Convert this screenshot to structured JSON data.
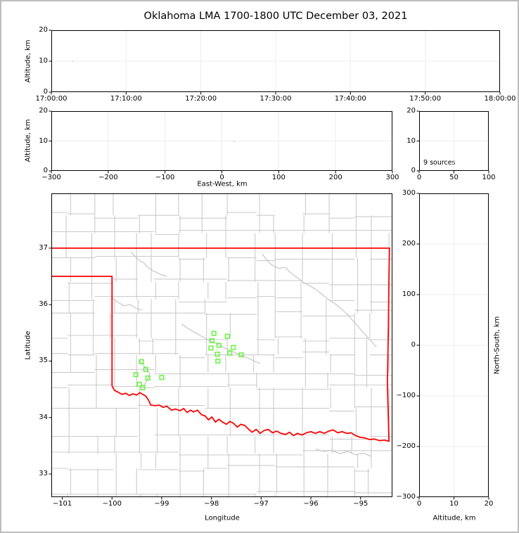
{
  "title": "Oklahoma LMA 1700-1800 UTC December 03, 2021",
  "colors": {
    "background": "#ffffff",
    "frame_border": "#bdbdbd",
    "axis": "#000000",
    "grid": "#ececec",
    "county": "#cbcbcb",
    "river": "#c6c6c6",
    "state_border": "#ff0000",
    "station": "#62f53c",
    "source_point": "#e3e3ea",
    "text": "#000000"
  },
  "chart_data": [
    {
      "id": "time_height",
      "type": "scatter",
      "title": "Oklahoma LMA 1700-1800 UTC December 03, 2021",
      "xlabel": "",
      "ylabel": "Altitude, km",
      "xlim": [
        0,
        3600
      ],
      "ylim": [
        0,
        20
      ],
      "grid": true,
      "xticks": [
        {
          "v": 0,
          "label": "17:00:00"
        },
        {
          "v": 600,
          "label": "17:10:00"
        },
        {
          "v": 1200,
          "label": "17:20:00"
        },
        {
          "v": 1800,
          "label": "17:30:00"
        },
        {
          "v": 2400,
          "label": "17:40:00"
        },
        {
          "v": 3000,
          "label": "17:50:00"
        },
        {
          "v": 3600,
          "label": "18:00:00"
        }
      ],
      "yticks": [
        {
          "v": 0,
          "label": "0"
        },
        {
          "v": 10,
          "label": "10"
        },
        {
          "v": 20,
          "label": "20"
        }
      ],
      "points": [
        {
          "x": 170,
          "y": 10.0
        }
      ]
    },
    {
      "id": "ew_height",
      "type": "scatter",
      "xlabel": "East-West, km",
      "ylabel": "Altitude, km",
      "xlim": [
        -300,
        300
      ],
      "ylim": [
        0,
        20
      ],
      "grid": true,
      "xticks": [
        {
          "v": -300,
          "label": "−300"
        },
        {
          "v": -200,
          "label": "−200"
        },
        {
          "v": -100,
          "label": "−100"
        },
        {
          "v": 0,
          "label": "0"
        },
        {
          "v": 100,
          "label": "100"
        },
        {
          "v": 200,
          "label": "200"
        },
        {
          "v": 300,
          "label": "300"
        }
      ],
      "yticks": [
        {
          "v": 0,
          "label": "0"
        },
        {
          "v": 10,
          "label": "10"
        },
        {
          "v": 20,
          "label": "20"
        }
      ],
      "points": [
        {
          "x": 22,
          "y": 9.9
        }
      ]
    },
    {
      "id": "alt_histogram",
      "type": "scatter",
      "annotation": "9 sources",
      "xlabel": "",
      "ylabel": "",
      "xlim": [
        0,
        100
      ],
      "ylim": [
        0,
        20
      ],
      "grid": true,
      "xticks": [
        {
          "v": 0,
          "label": "0"
        },
        {
          "v": 50,
          "label": "50"
        },
        {
          "v": 100,
          "label": "100"
        }
      ],
      "yticks": [
        {
          "v": 0,
          "label": "0"
        },
        {
          "v": 10,
          "label": "10"
        },
        {
          "v": 20,
          "label": "20"
        }
      ],
      "points": []
    },
    {
      "id": "map",
      "type": "scatter",
      "xlabel": "Longitude",
      "ylabel": "Latitude",
      "xlim": [
        -101.22,
        -94.36
      ],
      "ylim": [
        32.59,
        37.97
      ],
      "grid": false,
      "xticks": [
        {
          "v": -101,
          "label": "−101"
        },
        {
          "v": -100,
          "label": "−100"
        },
        {
          "v": -99,
          "label": "−99"
        },
        {
          "v": -98,
          "label": "−98"
        },
        {
          "v": -97,
          "label": "−97"
        },
        {
          "v": -96,
          "label": "−96"
        },
        {
          "v": -95,
          "label": "−95"
        }
      ],
      "yticks": [
        {
          "v": 33,
          "label": "33"
        },
        {
          "v": 34,
          "label": "34"
        },
        {
          "v": 35,
          "label": "35"
        },
        {
          "v": 36,
          "label": "36"
        },
        {
          "v": 37,
          "label": "37"
        }
      ],
      "stations": [
        [
          -97.95,
          35.49
        ],
        [
          -97.68,
          35.44
        ],
        [
          -97.99,
          35.36
        ],
        [
          -97.85,
          35.28
        ],
        [
          -98.01,
          35.23
        ],
        [
          -97.56,
          35.24
        ],
        [
          -97.88,
          35.12
        ],
        [
          -97.63,
          35.14
        ],
        [
          -97.4,
          35.11
        ],
        [
          -97.87,
          35.0
        ],
        [
          -99.41,
          34.99
        ],
        [
          -99.32,
          34.85
        ],
        [
          -99.52,
          34.76
        ],
        [
          -99.28,
          34.7
        ],
        [
          -99.0,
          34.71
        ],
        [
          -99.45,
          34.59
        ],
        [
          -99.38,
          34.53
        ]
      ],
      "state_border": [
        [
          -101.22,
          36.5
        ],
        [
          -100.0,
          36.5
        ],
        [
          -100.0,
          34.56
        ],
        [
          -99.95,
          34.48
        ],
        [
          -99.88,
          34.45
        ],
        [
          -99.8,
          34.41
        ],
        [
          -99.72,
          34.43
        ],
        [
          -99.65,
          34.39
        ],
        [
          -99.58,
          34.42
        ],
        [
          -99.5,
          34.4
        ],
        [
          -99.44,
          34.44
        ],
        [
          -99.38,
          34.41
        ],
        [
          -99.32,
          34.38
        ],
        [
          -99.26,
          34.3
        ],
        [
          -99.22,
          34.22
        ],
        [
          -99.13,
          34.21
        ],
        [
          -99.05,
          34.22
        ],
        [
          -98.97,
          34.18
        ],
        [
          -98.9,
          34.2
        ],
        [
          -98.8,
          34.13
        ],
        [
          -98.72,
          34.15
        ],
        [
          -98.63,
          34.12
        ],
        [
          -98.56,
          34.16
        ],
        [
          -98.49,
          34.09
        ],
        [
          -98.42,
          34.13
        ],
        [
          -98.36,
          34.1
        ],
        [
          -98.28,
          34.13
        ],
        [
          -98.2,
          34.05
        ],
        [
          -98.13,
          34.03
        ],
        [
          -98.06,
          33.96
        ],
        [
          -97.99,
          34.01
        ],
        [
          -97.92,
          33.92
        ],
        [
          -97.85,
          33.97
        ],
        [
          -97.78,
          33.92
        ],
        [
          -97.7,
          33.88
        ],
        [
          -97.63,
          33.93
        ],
        [
          -97.56,
          33.9
        ],
        [
          -97.48,
          33.83
        ],
        [
          -97.41,
          33.88
        ],
        [
          -97.33,
          33.86
        ],
        [
          -97.25,
          33.79
        ],
        [
          -97.18,
          33.74
        ],
        [
          -97.1,
          33.79
        ],
        [
          -97.02,
          33.72
        ],
        [
          -96.94,
          33.77
        ],
        [
          -96.86,
          33.79
        ],
        [
          -96.77,
          33.73
        ],
        [
          -96.69,
          33.76
        ],
        [
          -96.6,
          33.72
        ],
        [
          -96.51,
          33.7
        ],
        [
          -96.43,
          33.74
        ],
        [
          -96.35,
          33.68
        ],
        [
          -96.27,
          33.72
        ],
        [
          -96.18,
          33.69
        ],
        [
          -96.09,
          33.73
        ],
        [
          -96.0,
          33.75
        ],
        [
          -95.91,
          33.72
        ],
        [
          -95.82,
          33.75
        ],
        [
          -95.73,
          33.72
        ],
        [
          -95.64,
          33.76
        ],
        [
          -95.55,
          33.78
        ],
        [
          -95.46,
          33.73
        ],
        [
          -95.37,
          33.75
        ],
        [
          -95.28,
          33.72
        ],
        [
          -95.19,
          33.73
        ],
        [
          -95.1,
          33.68
        ],
        [
          -95.01,
          33.65
        ],
        [
          -94.92,
          33.64
        ],
        [
          -94.82,
          33.61
        ],
        [
          -94.72,
          33.62
        ],
        [
          -94.62,
          33.59
        ],
        [
          -94.52,
          33.6
        ],
        [
          -94.43,
          33.58
        ],
        [
          -94.46,
          34.6
        ],
        [
          -94.44,
          35.6
        ],
        [
          -94.43,
          36.5
        ],
        [
          -94.42,
          37.0
        ],
        [
          -101.22,
          37.0
        ]
      ],
      "rivers": [
        [
          [
            -99.62,
            36.93
          ],
          [
            -99.52,
            36.84
          ],
          [
            -99.45,
            36.78
          ],
          [
            -99.36,
            36.74
          ],
          [
            -99.28,
            36.66
          ],
          [
            -99.18,
            36.6
          ],
          [
            -99.08,
            36.56
          ],
          [
            -98.98,
            36.52
          ],
          [
            -98.9,
            36.5
          ]
        ],
        [
          [
            -96.98,
            36.9
          ],
          [
            -96.88,
            36.78
          ],
          [
            -96.78,
            36.7
          ],
          [
            -96.65,
            36.64
          ],
          [
            -96.52,
            36.66
          ],
          [
            -96.4,
            36.56
          ],
          [
            -96.28,
            36.48
          ],
          [
            -96.16,
            36.4
          ],
          [
            -96.04,
            36.34
          ],
          [
            -95.92,
            36.28
          ],
          [
            -95.8,
            36.2
          ],
          [
            -95.66,
            36.1
          ],
          [
            -95.52,
            36.02
          ],
          [
            -95.38,
            35.92
          ],
          [
            -95.24,
            35.8
          ],
          [
            -95.1,
            35.66
          ],
          [
            -94.96,
            35.52
          ],
          [
            -94.82,
            35.38
          ],
          [
            -94.68,
            35.25
          ]
        ],
        [
          [
            -98.6,
            35.66
          ],
          [
            -98.48,
            35.58
          ],
          [
            -98.36,
            35.52
          ],
          [
            -98.24,
            35.46
          ],
          [
            -98.12,
            35.4
          ],
          [
            -98.0,
            35.35
          ],
          [
            -97.88,
            35.3
          ],
          [
            -97.76,
            35.24
          ],
          [
            -97.63,
            35.19
          ],
          [
            -97.5,
            35.14
          ],
          [
            -97.38,
            35.09
          ],
          [
            -97.26,
            35.05
          ],
          [
            -97.14,
            35.0
          ],
          [
            -97.02,
            34.96
          ]
        ],
        [
          [
            -99.45,
            35.02
          ],
          [
            -99.37,
            34.93
          ],
          [
            -99.3,
            34.85
          ],
          [
            -99.24,
            34.77
          ],
          [
            -99.28,
            34.69
          ],
          [
            -99.33,
            34.61
          ],
          [
            -99.38,
            34.53
          ]
        ],
        [
          [
            -100.0,
            36.12
          ],
          [
            -99.88,
            36.04
          ],
          [
            -99.76,
            35.98
          ],
          [
            -99.64,
            36.0
          ],
          [
            -99.52,
            35.94
          ],
          [
            -99.4,
            35.9
          ]
        ],
        [
          [
            -95.9,
            33.44
          ],
          [
            -95.74,
            33.4
          ],
          [
            -95.58,
            33.42
          ],
          [
            -95.42,
            33.36
          ],
          [
            -95.26,
            33.4
          ],
          [
            -95.1,
            33.34
          ],
          [
            -94.94,
            33.37
          ],
          [
            -94.78,
            33.31
          ]
        ]
      ],
      "counties": {
        "seed": 5,
        "avg_w_deg": 0.46,
        "avg_h_deg": 0.37
      }
    },
    {
      "id": "ns_height",
      "type": "scatter",
      "xlabel": "Altitude, km",
      "ylabel": "North-South, km",
      "xlim": [
        0,
        20
      ],
      "ylim": [
        -300,
        300
      ],
      "grid": true,
      "xticks": [
        {
          "v": 0,
          "label": "0"
        },
        {
          "v": 10,
          "label": "10"
        },
        {
          "v": 20,
          "label": "20"
        }
      ],
      "yticks": [
        {
          "v": 300,
          "label": "300"
        },
        {
          "v": 200,
          "label": "200"
        },
        {
          "v": 100,
          "label": "100"
        },
        {
          "v": 0,
          "label": "0"
        },
        {
          "v": -100,
          "label": "−100"
        },
        {
          "v": -200,
          "label": "−200"
        },
        {
          "v": -300,
          "label": "−300"
        }
      ],
      "points": []
    }
  ]
}
